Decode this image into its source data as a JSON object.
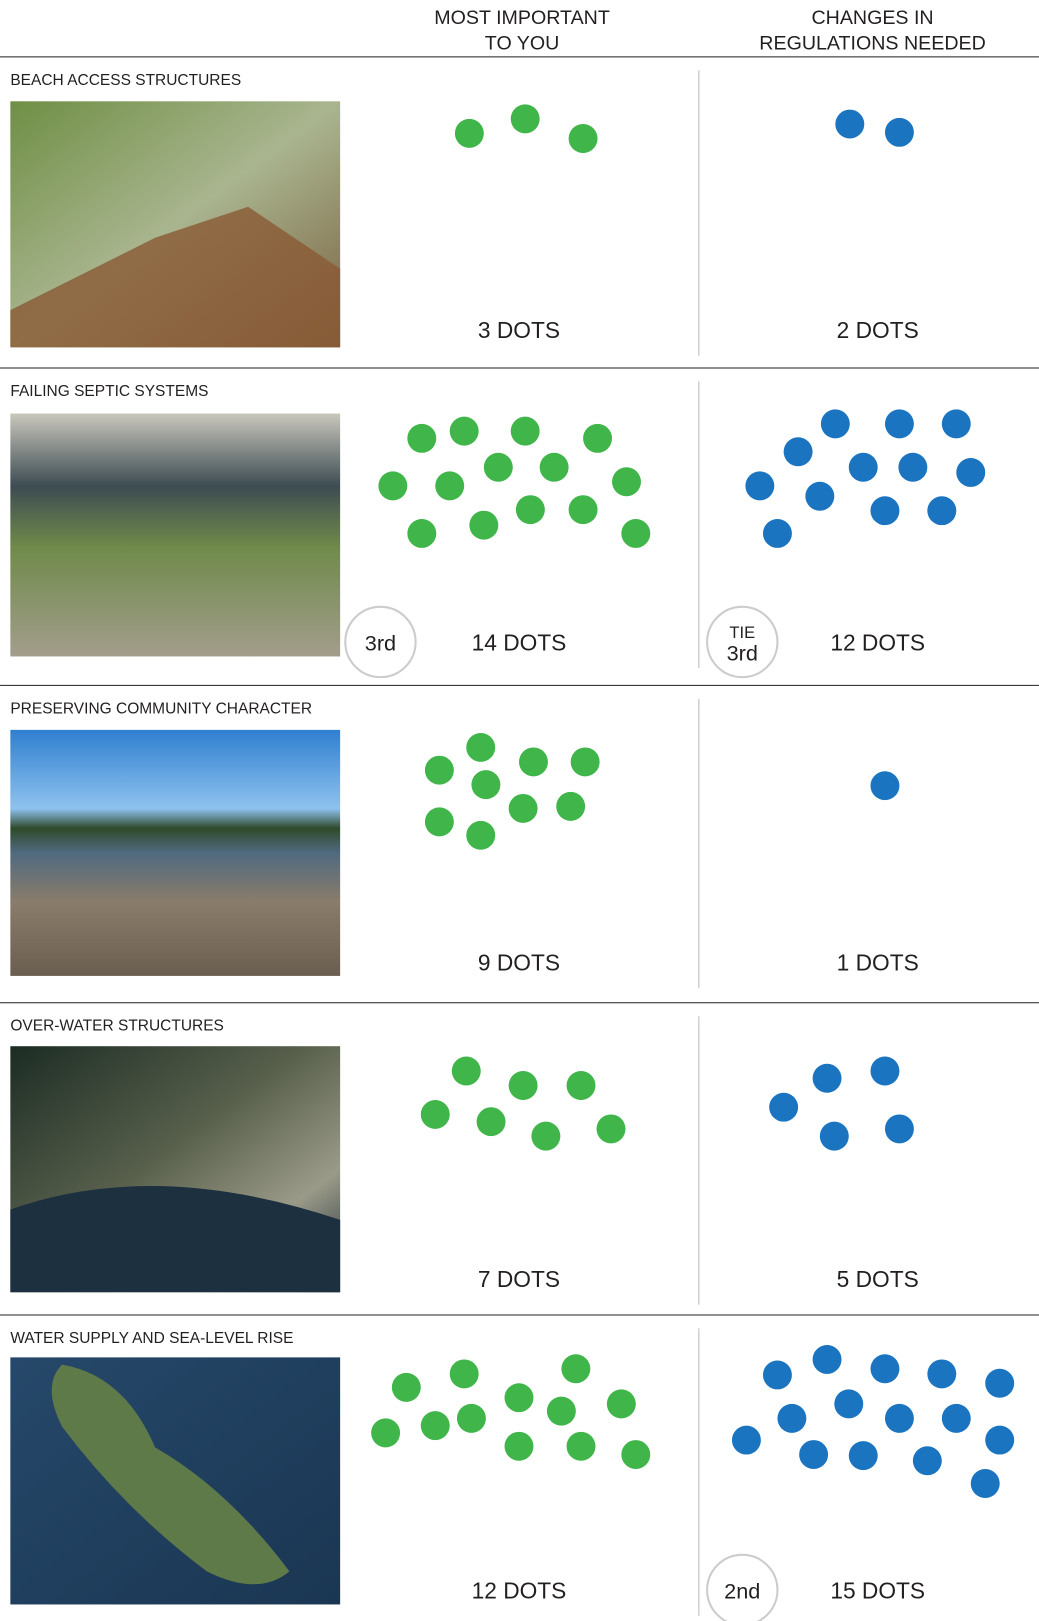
{
  "header": {
    "col1": [
      "MOST IMPORTANT",
      "TO YOU"
    ],
    "col2": [
      "CHANGES IN",
      "REGULATIONS NEEDED"
    ]
  },
  "rows": [
    {
      "title": "BEACH ACCESS STRUCTURES",
      "important": {
        "count": "3 DOTS"
      },
      "changes": {
        "count": "2 DOTS"
      }
    },
    {
      "title": "FAILING SEPTIC SYSTEMS",
      "important": {
        "count": "14 DOTS",
        "rank": [
          "3rd"
        ]
      },
      "changes": {
        "count": "12 DOTS",
        "rank": [
          "TIE",
          "3rd"
        ]
      }
    },
    {
      "title": "PRESERVING COMMUNITY CHARACTER",
      "important": {
        "count": "9 DOTS"
      },
      "changes": {
        "count": "1 DOTS"
      }
    },
    {
      "title": "OVER-WATER STRUCTURES",
      "important": {
        "count": "7 DOTS"
      },
      "changes": {
        "count": "5 DOTS"
      }
    },
    {
      "title": "WATER SUPPLY AND SEA-LEVEL RISE",
      "important": {
        "count": "12 DOTS"
      },
      "changes": {
        "count": "15 DOTS",
        "rank": [
          "2nd"
        ]
      }
    }
  ]
}
